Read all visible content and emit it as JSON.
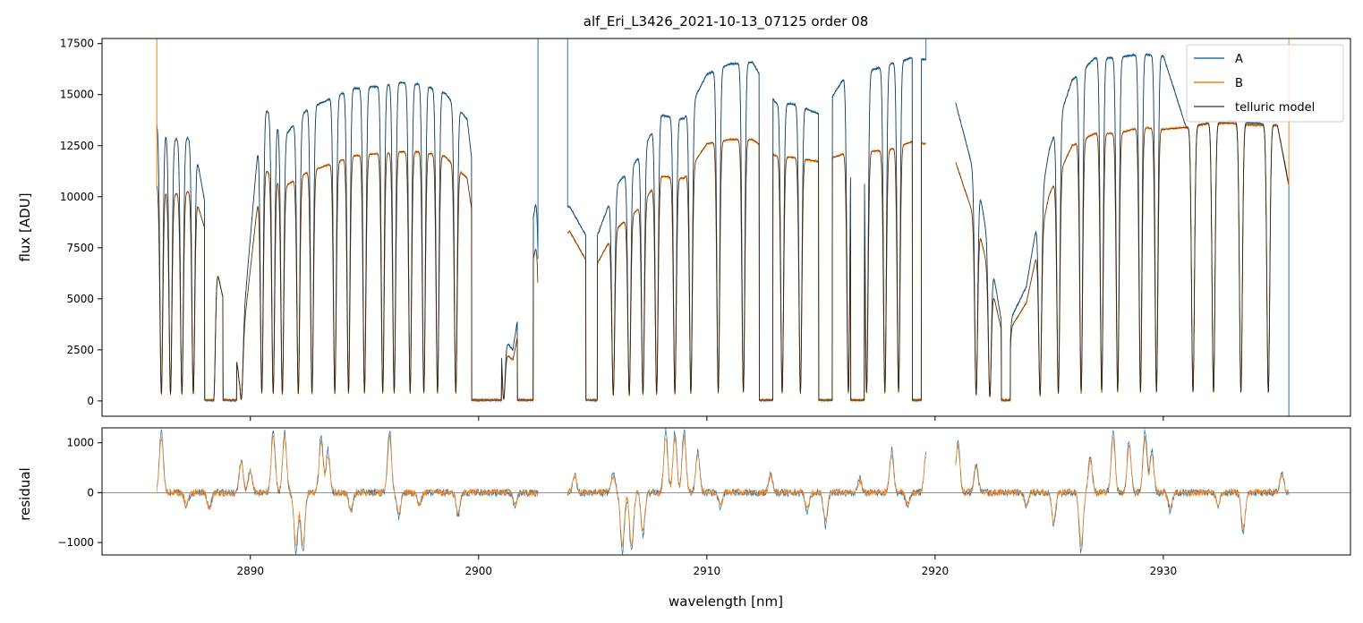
{
  "chart_data": [
    {
      "type": "line",
      "title": "alf_Eri_L3426_2021-10-13_07125  order 08",
      "xlabel": "",
      "ylabel": "flux [ADU]",
      "xlim": [
        2883.5,
        2938.2
      ],
      "ylim": [
        -750,
        17750
      ],
      "yticks": [
        0,
        2500,
        5000,
        7500,
        10000,
        12500,
        15000,
        17500
      ],
      "xticks": [
        2890,
        2900,
        2910,
        2920,
        2930
      ],
      "grid": false,
      "legend": {
        "placement": "top-right",
        "entries": [
          "A",
          "B",
          "telluric model"
        ]
      },
      "colors": {
        "A": "#1f77b4",
        "B": "#ff7f0e",
        "telluric model": "#000000"
      },
      "envelope_A": {
        "x": [
          2885.9,
          2886.5,
          2887.5,
          2888.5,
          2889.5,
          2890.5,
          2891.5,
          2892.5,
          2893.5,
          2894.5,
          2895.5,
          2896.5,
          2897.5,
          2898.5,
          2899.5,
          2900.5,
          2901.5,
          2902.5,
          2904.0,
          2905.0,
          2906.0,
          2907.0,
          2908.0,
          2909.0,
          2910.0,
          2911.0,
          2912.0,
          2913.0,
          2914.0,
          2915.0,
          2916.0,
          2917.0,
          2918.0,
          2919.0,
          2919.6,
          2920.9,
          2922.0,
          2923.0,
          2924.0,
          2925.0,
          2926.0,
          2927.0,
          2928.0,
          2929.0,
          2930.0,
          2931.0,
          2932.0,
          2933.0,
          2934.0,
          2935.0,
          2935.5
        ],
        "y": [
          13600,
          12800,
          12900,
          6600,
          1400,
          14600,
          13000,
          14300,
          14800,
          15300,
          15400,
          15600,
          15500,
          15100,
          13800,
          3900,
          2500,
          9700,
          9500,
          7500,
          10500,
          11900,
          14000,
          13800,
          16000,
          16500,
          16600,
          14600,
          14500,
          14000,
          15800,
          16100,
          16500,
          16800,
          16700,
          14600,
          9900,
          3300,
          5600,
          12300,
          15700,
          16800,
          16800,
          17000,
          16900,
          13400,
          13600,
          13700,
          13600,
          13500,
          10600
        ]
      },
      "envelope_B": {
        "x": [
          2885.9,
          2886.5,
          2887.5,
          2888.5,
          2889.5,
          2890.5,
          2891.5,
          2892.5,
          2893.5,
          2894.5,
          2895.5,
          2896.5,
          2897.5,
          2898.5,
          2899.5,
          2900.5,
          2901.5,
          2902.5,
          2904.0,
          2905.0,
          2906.0,
          2907.0,
          2908.0,
          2909.0,
          2910.0,
          2911.0,
          2912.0,
          2913.0,
          2914.0,
          2915.0,
          2916.0,
          2917.0,
          2918.0,
          2919.0,
          2919.6,
          2920.9,
          2922.0,
          2923.0,
          2924.0,
          2925.0,
          2926.0,
          2927.0,
          2928.0,
          2929.0,
          2930.0,
          2931.0,
          2932.0,
          2933.0,
          2934.0,
          2935.0,
          2935.5
        ],
        "y": [
          10600,
          10100,
          10300,
          6600,
          1400,
          11500,
          10500,
          11200,
          11600,
          12000,
          12100,
          12200,
          12200,
          12000,
          10900,
          3000,
          2000,
          7500,
          8300,
          6300,
          8400,
          9400,
          11000,
          10900,
          12600,
          12800,
          12800,
          12000,
          11900,
          11700,
          12100,
          12200,
          12300,
          12700,
          12600,
          11700,
          8000,
          3000,
          4800,
          10100,
          12500,
          13100,
          13100,
          13400,
          13300,
          13400,
          13600,
          13600,
          13500,
          13500,
          10500
        ]
      },
      "absorption_lines": [
        2886.1,
        2886.5,
        2887.0,
        2887.5,
        2888.4,
        2889.6,
        2890.5,
        2891.0,
        2891.4,
        2892.1,
        2892.7,
        2893.7,
        2894.3,
        2895.0,
        2895.8,
        2896.3,
        2897.0,
        2897.6,
        2898.2,
        2899.0,
        2901.1,
        2902.7,
        2905.0,
        2905.9,
        2906.6,
        2907.2,
        2907.8,
        2908.6,
        2909.3,
        2910.5,
        2911.6,
        2912.6,
        2913.3,
        2914.1,
        2915.2,
        2916.2,
        2917.0,
        2917.8,
        2918.4,
        2921.8,
        2922.4,
        2923.2,
        2924.6,
        2925.4,
        2926.4,
        2927.3,
        2928.0,
        2929.0,
        2929.7,
        2931.3,
        2932.2,
        2933.4,
        2934.6
      ],
      "saturated_bands": [
        [
          2888.0,
          2888.4
        ],
        [
          2888.8,
          2889.4
        ],
        [
          2899.7,
          2901.0
        ],
        [
          2901.7,
          2902.4
        ],
        [
          2904.7,
          2905.2
        ],
        [
          2912.3,
          2912.9
        ],
        [
          2914.9,
          2915.5
        ],
        [
          2916.3,
          2916.9
        ],
        [
          2919.0,
          2919.4
        ],
        [
          2922.9,
          2923.3
        ]
      ],
      "order_gaps": [
        [
          2902.6,
          2903.9
        ],
        [
          2919.6,
          2920.9
        ]
      ],
      "spikes": [
        {
          "series": "B",
          "x": 2885.9,
          "y": 17750
        },
        {
          "series": "A",
          "x": 2902.6,
          "y": 17750
        },
        {
          "series": "A",
          "x": 2903.9,
          "y": 17750
        },
        {
          "series": "A",
          "x": 2919.6,
          "y": 17750
        },
        {
          "series": "A",
          "x": 2935.5,
          "y": -750
        },
        {
          "series": "B",
          "x": 2935.5,
          "y": 17750
        }
      ]
    },
    {
      "type": "line",
      "title": "",
      "xlabel": "wavelength [nm]",
      "ylabel": "residual",
      "xlim": [
        2883.5,
        2938.2
      ],
      "ylim": [
        -1250,
        1300
      ],
      "yticks": [
        -1000,
        0,
        1000
      ],
      "xticks": [
        2890,
        2900,
        2910,
        2920,
        2930
      ],
      "xticklabels": [
        "2890",
        "2900",
        "2910",
        "2920",
        "2930"
      ],
      "zero_line": true,
      "series": [
        {
          "color": "#1f77b4"
        },
        {
          "color": "#ff7f0e"
        }
      ],
      "segments": [
        [
          2885.9,
          2902.6
        ],
        [
          2903.9,
          2919.6
        ],
        [
          2920.9,
          2935.5
        ]
      ],
      "features": [
        {
          "x": 2886.1,
          "amp": 1300
        },
        {
          "x": 2887.2,
          "amp": -300
        },
        {
          "x": 2888.2,
          "amp": -350
        },
        {
          "x": 2889.6,
          "amp": 700
        },
        {
          "x": 2890.0,
          "amp": 500
        },
        {
          "x": 2891.0,
          "amp": 1300
        },
        {
          "x": 2891.5,
          "amp": 1300
        },
        {
          "x": 2892.0,
          "amp": -1250
        },
        {
          "x": 2892.3,
          "amp": -1250
        },
        {
          "x": 2893.1,
          "amp": 1200
        },
        {
          "x": 2893.4,
          "amp": 900
        },
        {
          "x": 2894.4,
          "amp": -400
        },
        {
          "x": 2896.1,
          "amp": 1300
        },
        {
          "x": 2896.5,
          "amp": -500
        },
        {
          "x": 2897.4,
          "amp": -300
        },
        {
          "x": 2899.1,
          "amp": -500
        },
        {
          "x": 2901.6,
          "amp": -300
        },
        {
          "x": 2904.2,
          "amp": 400
        },
        {
          "x": 2905.9,
          "amp": 400
        },
        {
          "x": 2906.3,
          "amp": -1250
        },
        {
          "x": 2906.7,
          "amp": -1250
        },
        {
          "x": 2907.2,
          "amp": -900
        },
        {
          "x": 2908.2,
          "amp": 1300
        },
        {
          "x": 2908.6,
          "amp": 1300
        },
        {
          "x": 2909.0,
          "amp": 1300
        },
        {
          "x": 2909.6,
          "amp": 900
        },
        {
          "x": 2910.6,
          "amp": -300
        },
        {
          "x": 2912.8,
          "amp": 400
        },
        {
          "x": 2914.4,
          "amp": -400
        },
        {
          "x": 2915.2,
          "amp": -700
        },
        {
          "x": 2916.7,
          "amp": 300
        },
        {
          "x": 2918.1,
          "amp": 900
        },
        {
          "x": 2918.8,
          "amp": -300
        },
        {
          "x": 2919.6,
          "amp": 800
        },
        {
          "x": 2921.0,
          "amp": 1100
        },
        {
          "x": 2921.8,
          "amp": 600
        },
        {
          "x": 2924.0,
          "amp": -300
        },
        {
          "x": 2925.2,
          "amp": -700
        },
        {
          "x": 2926.4,
          "amp": -1250
        },
        {
          "x": 2926.8,
          "amp": 800
        },
        {
          "x": 2927.8,
          "amp": 1300
        },
        {
          "x": 2928.5,
          "amp": 1100
        },
        {
          "x": 2929.2,
          "amp": 1300
        },
        {
          "x": 2929.5,
          "amp": 900
        },
        {
          "x": 2930.3,
          "amp": -400
        },
        {
          "x": 2932.4,
          "amp": -300
        },
        {
          "x": 2933.5,
          "amp": -850
        },
        {
          "x": 2935.2,
          "amp": 400
        }
      ]
    }
  ]
}
